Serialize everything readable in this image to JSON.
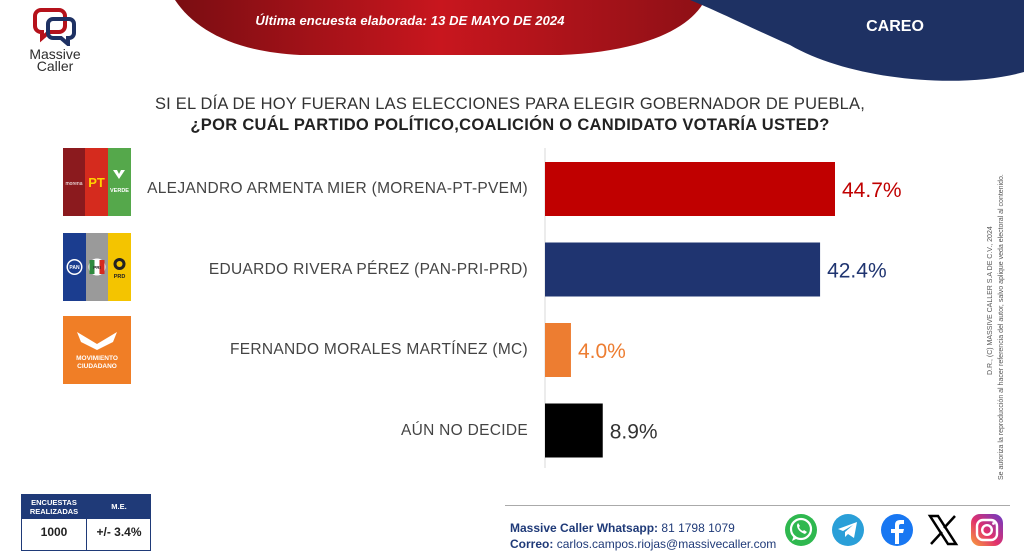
{
  "header": {
    "survey_date": "Última encuesta elaborada: 13 DE MAYO DE 2024",
    "section_tag": "CAREO",
    "brand_line1": "Massive",
    "brand_line2": "Caller",
    "brand_red": "#b5121b",
    "brand_navy": "#1e3163"
  },
  "question": {
    "line1": "SI EL DÍA DE HOY FUERAN LAS ELECCIONES PARA ELEGIR GOBERNADOR DE PUEBLA,",
    "line2": "¿POR CUÁL PARTIDO POLÍTICO,COALICIÓN  O CANDIDATO  VOTARÍA USTED?"
  },
  "party_logos": [
    {
      "icon": "morena-pt-pvem-coalition-logo",
      "texts": [
        "morena",
        "PT",
        "VERDE"
      ]
    },
    {
      "icon": "pan-pri-prd-coalition-logo",
      "texts": [
        "PAN",
        "PRI",
        "PRD"
      ]
    },
    {
      "icon": "movimiento-ciudadano-logo",
      "texts": [
        "MOVIMIENTO",
        "CIUDADANO"
      ]
    }
  ],
  "chart_data": {
    "type": "bar",
    "orientation": "horizontal",
    "categories": [
      "ALEJANDRO ARMENTA MIER (MORENA-PT-PVEM)",
      "EDUARDO RIVERA PÉREZ (PAN-PRI-PRD)",
      "FERNANDO MORALES MARTÍNEZ (MC)",
      "AÚN NO DECIDE"
    ],
    "values": [
      44.7,
      42.4,
      4.0,
      8.9
    ],
    "data_labels": [
      "44.7%",
      "42.4%",
      "4.0%",
      "8.9%"
    ],
    "colors": [
      "#c00000",
      "#1f3470",
      "#ed7d31",
      "#000000"
    ],
    "label_colors": [
      "#c00000",
      "#1f3470",
      "#ed7d31",
      "#333333"
    ],
    "xlim": [
      0,
      44.7
    ],
    "grid": false,
    "legend": "none"
  },
  "disclaimer": {
    "line1": "D.R., (C) MASSIVE CALLER S.A DE C.V., 2024",
    "line2": "Se autoriza la reproducción al hacer referencia del autor, salvo aplique veda electoral al contenido."
  },
  "methodology": {
    "col1_header": "ENCUESTAS REALIZADAS",
    "col2_header": "M.E.",
    "col1_value": "1000",
    "col2_value": "+/- 3.4%"
  },
  "contact": {
    "whatsapp_label": "Massive Caller Whatsapp:",
    "whatsapp_value": "81 1798 1079",
    "email_label": "Correo:",
    "email_value": "carlos.campos.riojas@massivecaller.com"
  },
  "social_icons": [
    "whatsapp-icon",
    "telegram-icon",
    "facebook-icon",
    "x-icon",
    "instagram-icon"
  ]
}
